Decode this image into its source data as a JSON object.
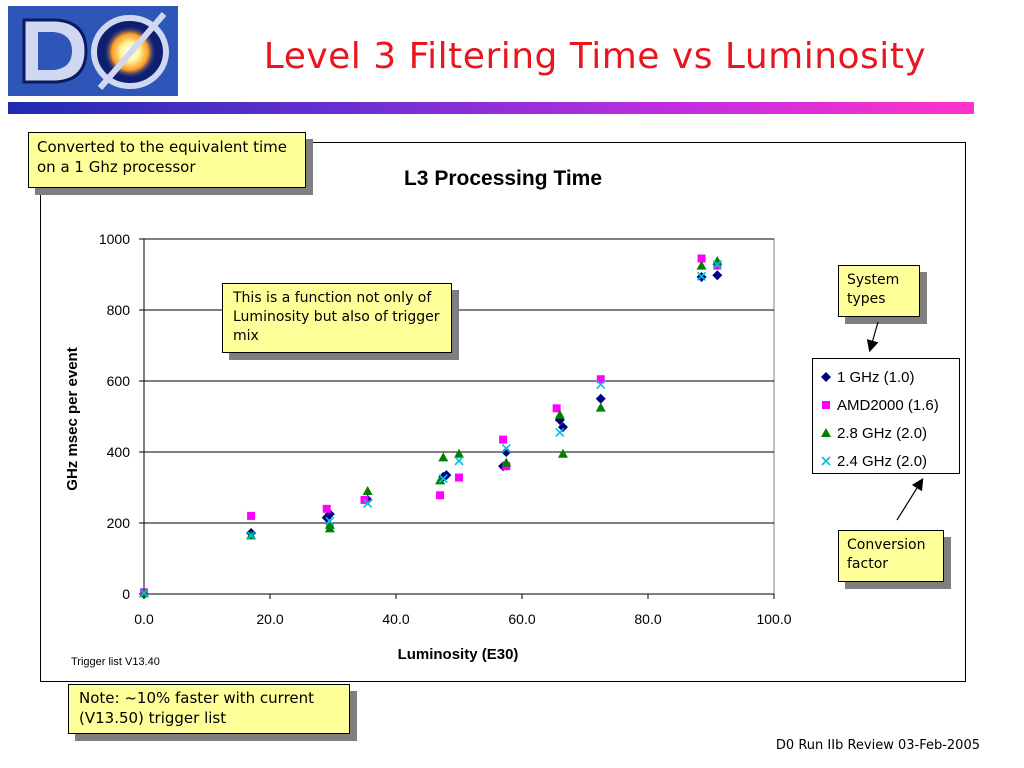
{
  "slide": {
    "title": "Level 3 Filtering Time vs Luminosity",
    "logo_text": "D0",
    "footer": "D0 Run IIb Review 03-Feb-2005",
    "header_bar_colors": [
      "#1f2bb0",
      "#6a2fd0",
      "#c22ee0",
      "#ff33cc"
    ]
  },
  "callouts": {
    "converted": "Converted to the equivalent time on a 1 Ghz processor",
    "function": "This is a function not only of Luminosity but also of trigger mix",
    "system_types": "System types",
    "conversion_factor": "Conversion factor",
    "note": "Note: ~10% faster with current (V13.50) trigger list"
  },
  "chart_data": {
    "type": "scatter",
    "title": "L3 Processing Time",
    "xlabel": "Luminosity (E30)",
    "ylabel": "GHz msec per event",
    "annotation": "Trigger list V13.40",
    "xlim": [
      0,
      100
    ],
    "ylim": [
      0,
      1000
    ],
    "x_ticks": [
      "0.0",
      "20.0",
      "40.0",
      "60.0",
      "80.0",
      "100.0"
    ],
    "y_ticks": [
      "0",
      "200",
      "400",
      "600",
      "800",
      "1000"
    ],
    "grid": "horizontal",
    "legend_position": "right",
    "series": [
      {
        "name": "1 GHz (1.0)",
        "marker": "diamond",
        "color": "#000080",
        "points": [
          [
            0,
            0
          ],
          [
            17,
            172
          ],
          [
            29,
            215
          ],
          [
            29.5,
            225
          ],
          [
            35.5,
            265
          ],
          [
            47.5,
            330
          ],
          [
            48,
            335
          ],
          [
            57,
            360
          ],
          [
            57.5,
            400
          ],
          [
            66,
            490
          ],
          [
            66.5,
            470
          ],
          [
            72.5,
            550
          ],
          [
            88.5,
            893
          ],
          [
            91,
            898
          ]
        ]
      },
      {
        "name": "AMD2000 (1.6)",
        "marker": "square",
        "color": "#ff00ff",
        "points": [
          [
            0,
            5
          ],
          [
            17,
            220
          ],
          [
            29,
            240
          ],
          [
            35,
            265
          ],
          [
            47,
            278
          ],
          [
            50,
            328
          ],
          [
            57,
            435
          ],
          [
            57.5,
            360
          ],
          [
            65.5,
            523
          ],
          [
            72.5,
            605
          ],
          [
            88.5,
            945
          ],
          [
            91,
            925
          ]
        ]
      },
      {
        "name": "2.8 GHz (2.0)",
        "marker": "triangle",
        "color": "#008000",
        "points": [
          [
            0,
            2
          ],
          [
            17,
            165
          ],
          [
            29.5,
            185
          ],
          [
            29.5,
            195
          ],
          [
            35.5,
            290
          ],
          [
            47,
            320
          ],
          [
            47.5,
            385
          ],
          [
            50,
            395
          ],
          [
            57.5,
            370
          ],
          [
            66,
            505
          ],
          [
            66.5,
            395
          ],
          [
            72.5,
            525
          ],
          [
            88.5,
            925
          ],
          [
            91,
            938
          ]
        ]
      },
      {
        "name": "2.4 GHz (2.0)",
        "marker": "x",
        "color": "#00c0e0",
        "points": [
          [
            0,
            3
          ],
          [
            17,
            165
          ],
          [
            29.5,
            205
          ],
          [
            35.5,
            255
          ],
          [
            47.5,
            325
          ],
          [
            50,
            375
          ],
          [
            57.5,
            410
          ],
          [
            66,
            455
          ],
          [
            72.5,
            590
          ],
          [
            88.5,
            895
          ],
          [
            91,
            928
          ]
        ]
      }
    ]
  }
}
